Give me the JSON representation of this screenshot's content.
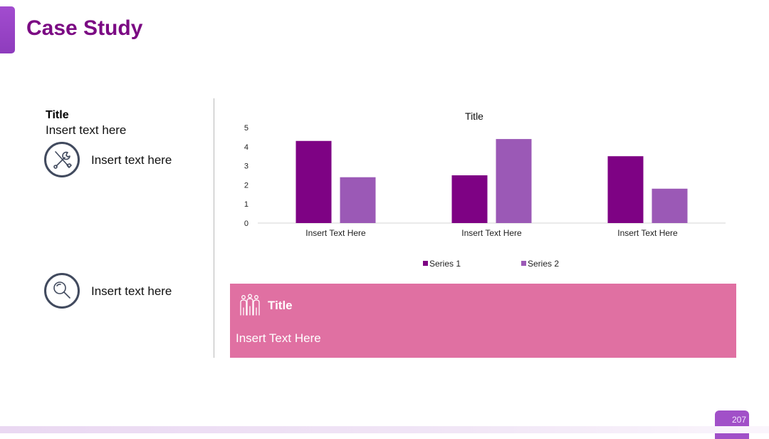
{
  "header": {
    "title": "Case Study"
  },
  "left_panel": {
    "title": "Title",
    "subtitle": "Insert text here",
    "items": [
      {
        "icon": "tools-icon",
        "text": "Insert text here"
      },
      {
        "icon": "magnifier-icon",
        "text": "Insert text here"
      }
    ]
  },
  "info_box": {
    "icon": "people-icon",
    "title": "Title",
    "text": "Insert Text Here"
  },
  "page_number": "207",
  "colors": {
    "series1": "#7e0284",
    "series2": "#9b59b6",
    "title": "#7b0a83",
    "box": "#e070a2"
  },
  "chart_data": {
    "type": "bar",
    "title": "Title",
    "categories": [
      "Insert Text Here",
      "Insert Text Here",
      "Insert Text Here"
    ],
    "series": [
      {
        "name": "Series 1",
        "values": [
          4.3,
          2.5,
          3.5
        ]
      },
      {
        "name": "Series 2",
        "values": [
          2.4,
          4.4,
          1.8
        ]
      }
    ],
    "ylim": [
      0,
      5
    ],
    "yticks": [
      0,
      1,
      2,
      3,
      4,
      5
    ],
    "grid": false,
    "legend": "bottom"
  }
}
